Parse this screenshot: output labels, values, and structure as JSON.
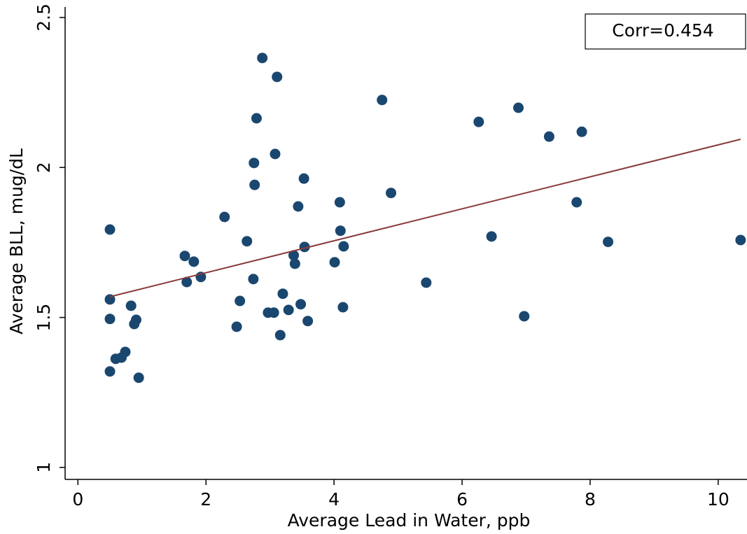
{
  "chart_data": {
    "type": "scatter",
    "x_label": "Average Lead in Water, ppb",
    "y_label": "Average BLL, mug/dL",
    "annotation": "Corr=0.454",
    "color": "#1a476f",
    "x": [
      0.5,
      0.5,
      0.5,
      0.5,
      0.59,
      0.68,
      0.74,
      0.83,
      0.88,
      0.91,
      0.95,
      1.67,
      1.7,
      1.81,
      1.92,
      2.29,
      2.48,
      2.53,
      2.64,
      2.74,
      2.75,
      2.76,
      2.79,
      2.88,
      2.97,
      3.06,
      3.08,
      3.11,
      3.16,
      3.2,
      3.29,
      3.37,
      3.39,
      3.44,
      3.48,
      3.53,
      3.54,
      3.59,
      4.01,
      4.09,
      4.1,
      4.14,
      4.15,
      4.75,
      4.89,
      5.44,
      6.26,
      6.46,
      6.88,
      6.97,
      7.36,
      7.79,
      7.87,
      8.28,
      10.35
    ],
    "y": [
      1.793,
      1.56,
      1.495,
      1.32,
      1.362,
      1.366,
      1.385,
      1.539,
      1.478,
      1.492,
      1.299,
      1.705,
      1.618,
      1.686,
      1.635,
      1.835,
      1.469,
      1.555,
      1.754,
      1.628,
      2.015,
      1.942,
      2.164,
      2.365,
      1.516,
      1.516,
      2.045,
      2.302,
      1.441,
      1.579,
      1.525,
      1.707,
      1.679,
      1.87,
      1.544,
      1.963,
      1.735,
      1.488,
      1.684,
      1.884,
      1.789,
      1.534,
      1.737,
      2.225,
      1.915,
      1.616,
      2.152,
      1.77,
      2.199,
      1.504,
      2.103,
      1.884,
      2.119,
      1.752,
      1.758
    ],
    "fit": {
      "x": [
        0.5,
        10.35
      ],
      "y": [
        1.569,
        2.094
      ],
      "color": "#8b3a3a"
    },
    "xlim": [
      -0.2,
      10.45
    ],
    "ylim": [
      0.96,
      2.535
    ],
    "xticks": [
      0,
      2,
      4,
      6,
      8,
      10
    ],
    "yticks": [
      1,
      1.5,
      2,
      2.5
    ],
    "grid": false
  }
}
